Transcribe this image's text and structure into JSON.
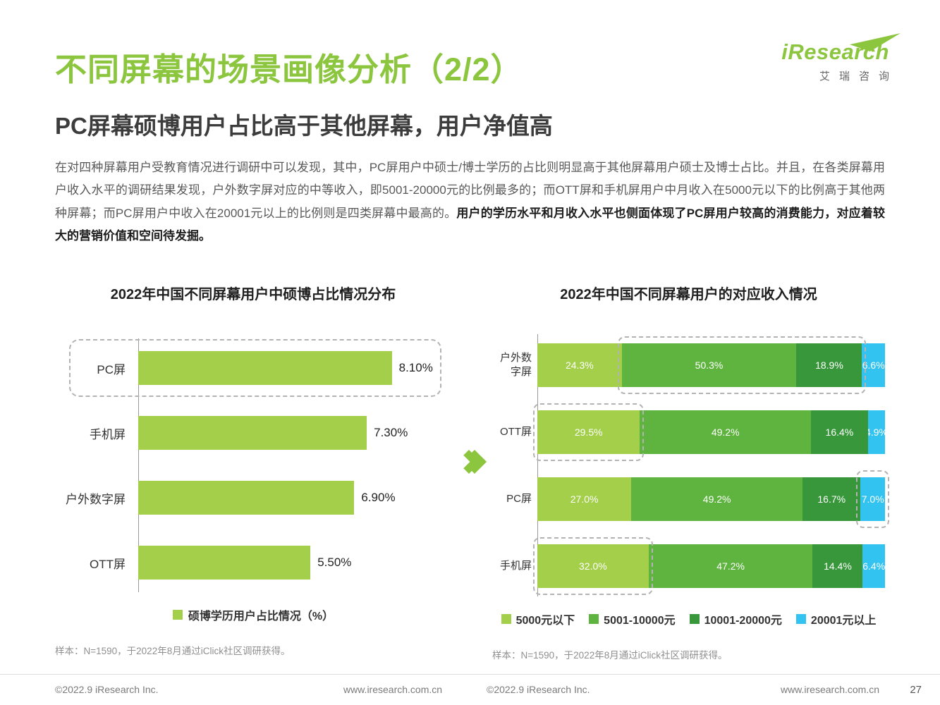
{
  "logo": {
    "brand": "iResearch",
    "cn": "艾瑞咨询"
  },
  "header": {
    "title": "不同屏幕的场景画像分析（2/2）",
    "subtitle": "PC屏幕硕博用户占比高于其他屏幕，用户净值高"
  },
  "body": {
    "normal": "在对四种屏幕用户受教育情况进行调研中可以发现，其中，PC屏用户中硕士/博士学历的占比则明显高于其他屏幕用户硕士及博士占比。并且，在各类屏幕用户收入水平的调研结果发现，户外数字屏对应的中等收入，即5001-20000元的比例最多的；而OTT屏和手机屏用户中月收入在5000元以下的比例高于其他两种屏幕；而PC屏用户中收入在20001元以上的比例则是四类屏幕中最高的。",
    "bold": "用户的学历水平和月收入水平也侧面体现了PC屏用户较高的消费能力，对应着较大的营销价值和空间待发掘。"
  },
  "chart_data": [
    {
      "type": "bar",
      "orientation": "horizontal",
      "title": "2022年中国不同屏幕用户中硕博占比情况分布",
      "categories": [
        "PC屏",
        "手机屏",
        "户外数字屏",
        "OTT屏"
      ],
      "values": [
        8.1,
        7.3,
        6.9,
        5.5
      ],
      "value_labels": [
        "8.10%",
        "7.30%",
        "6.90%",
        "5.50%"
      ],
      "xmax": 10,
      "bar_color": "#A3CF4A",
      "legend": "硕博学历用户占比情况（%）",
      "highlight_category": "PC屏",
      "note": "样本：N=1590，于2022年8月通过iClick社区调研获得。"
    },
    {
      "type": "bar",
      "stacked": true,
      "orientation": "horizontal",
      "title": "2022年中国不同屏幕用户的对应收入情况",
      "categories": [
        "户外数\n字屏",
        "OTT屏",
        "PC屏",
        "手机屏"
      ],
      "series": [
        {
          "name": "5000元以下",
          "color": "#A3CF4A",
          "values": [
            24.3,
            29.5,
            27.0,
            32.0
          ]
        },
        {
          "name": "5001-10000元",
          "color": "#5EB43F",
          "values": [
            50.3,
            49.2,
            49.2,
            47.2
          ]
        },
        {
          "name": "10001-20000元",
          "color": "#38973B",
          "values": [
            18.9,
            16.4,
            16.7,
            14.4
          ]
        },
        {
          "name": "20001元以上",
          "color": "#32C3F0",
          "values": [
            6.6,
            4.9,
            7.0,
            6.4
          ]
        }
      ],
      "highlights": [
        {
          "row": 0,
          "from": 1,
          "to": 2
        },
        {
          "row": 1,
          "from": 0,
          "to": 0
        },
        {
          "row": 2,
          "from": 3,
          "to": 3
        },
        {
          "row": 3,
          "from": 0,
          "to": 0
        }
      ],
      "note": "样本：N=1590，于2022年8月通过iClick社区调研获得。"
    }
  ],
  "footer": {
    "copyright": "©2022.9 iResearch Inc.",
    "website": "www.iresearch.com.cn",
    "page_number": "27"
  }
}
